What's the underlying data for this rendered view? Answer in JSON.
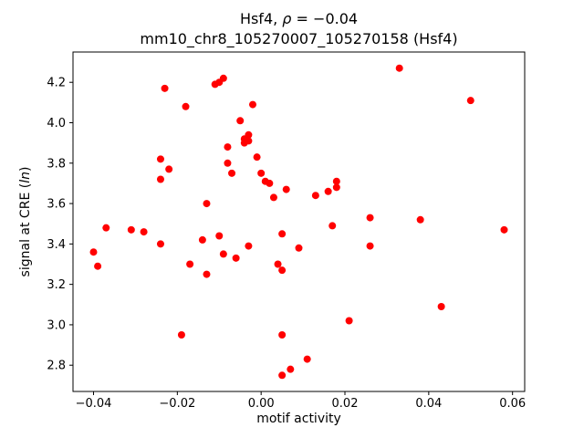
{
  "title": {
    "prefix": "Hsf4, ",
    "rho": "ρ",
    "suffix": " = −0.04"
  },
  "subtitle": "mm10_chr8_105270007_105270158 (Hsf4)",
  "xlabel": "motif activity",
  "ylabel": {
    "prefix": "signal at CRE (",
    "italic": "ln",
    "suffix": ")"
  },
  "chart_data": {
    "type": "scatter",
    "title": "Hsf4, ρ = −0.04",
    "subtitle": "mm10_chr8_105270007_105270158 (Hsf4)",
    "xlabel": "motif activity",
    "ylabel": "signal at CRE (ln)",
    "marker_color": "#ff0000",
    "marker_radius": 4,
    "grid": false,
    "legend": "none",
    "xlim": [
      -0.0449,
      0.0629
    ],
    "ylim": [
      2.67,
      4.35
    ],
    "xticks": [
      -0.04,
      -0.02,
      0.0,
      0.02,
      0.04,
      0.06
    ],
    "xtick_labels": [
      "−0.04",
      "−0.02",
      "0.00",
      "0.02",
      "0.04",
      "0.06"
    ],
    "yticks": [
      2.8,
      3.0,
      3.2,
      3.4,
      3.6,
      3.8,
      4.0,
      4.2
    ],
    "ytick_labels": [
      "2.8",
      "3.0",
      "3.2",
      "3.4",
      "3.6",
      "3.8",
      "4.0",
      "4.2"
    ],
    "points": [
      [
        -0.04,
        3.36
      ],
      [
        -0.039,
        3.29
      ],
      [
        -0.037,
        3.48
      ],
      [
        -0.031,
        3.47
      ],
      [
        -0.028,
        3.46
      ],
      [
        -0.024,
        3.82
      ],
      [
        -0.024,
        3.72
      ],
      [
        -0.024,
        3.4
      ],
      [
        -0.023,
        4.17
      ],
      [
        -0.022,
        3.77
      ],
      [
        -0.019,
        2.95
      ],
      [
        -0.018,
        4.08
      ],
      [
        -0.017,
        3.3
      ],
      [
        -0.014,
        3.42
      ],
      [
        -0.013,
        3.25
      ],
      [
        -0.013,
        3.6
      ],
      [
        -0.011,
        4.19
      ],
      [
        -0.01,
        4.2
      ],
      [
        -0.01,
        3.44
      ],
      [
        -0.009,
        3.35
      ],
      [
        -0.009,
        4.22
      ],
      [
        -0.008,
        3.8
      ],
      [
        -0.008,
        3.88
      ],
      [
        -0.007,
        3.75
      ],
      [
        -0.006,
        3.33
      ],
      [
        -0.005,
        4.01
      ],
      [
        -0.004,
        3.9
      ],
      [
        -0.004,
        3.92
      ],
      [
        -0.003,
        3.94
      ],
      [
        -0.003,
        3.91
      ],
      [
        -0.003,
        3.39
      ],
      [
        -0.002,
        4.09
      ],
      [
        -0.001,
        3.83
      ],
      [
        0.0,
        3.75
      ],
      [
        0.001,
        3.71
      ],
      [
        0.002,
        3.7
      ],
      [
        0.003,
        3.63
      ],
      [
        0.004,
        3.3
      ],
      [
        0.005,
        3.45
      ],
      [
        0.005,
        3.27
      ],
      [
        0.005,
        2.95
      ],
      [
        0.005,
        2.75
      ],
      [
        0.006,
        3.67
      ],
      [
        0.007,
        2.78
      ],
      [
        0.009,
        3.38
      ],
      [
        0.011,
        2.83
      ],
      [
        0.013,
        3.64
      ],
      [
        0.016,
        3.66
      ],
      [
        0.017,
        3.49
      ],
      [
        0.018,
        3.71
      ],
      [
        0.018,
        3.68
      ],
      [
        0.021,
        3.02
      ],
      [
        0.026,
        3.53
      ],
      [
        0.026,
        3.39
      ],
      [
        0.033,
        4.27
      ],
      [
        0.038,
        3.52
      ],
      [
        0.043,
        3.09
      ],
      [
        0.05,
        4.11
      ],
      [
        0.058,
        3.47
      ]
    ]
  }
}
